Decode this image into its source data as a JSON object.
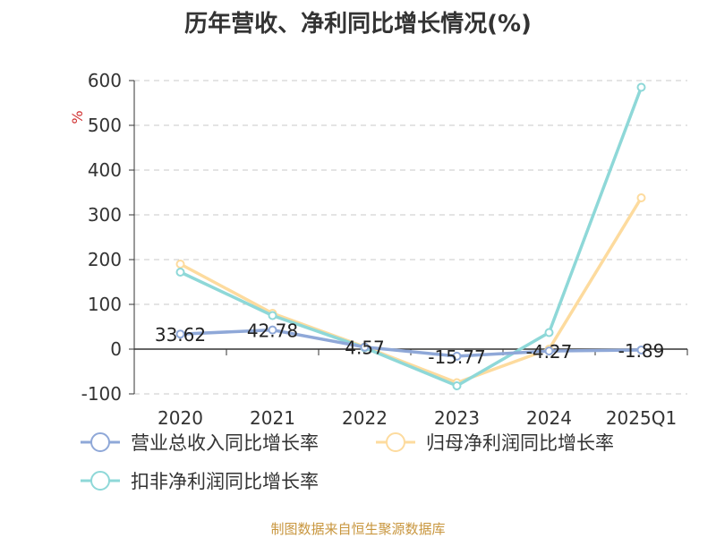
{
  "chart_data": {
    "type": "line",
    "title": "历年营收、净利同比增长情况(%)",
    "ylabel": "%",
    "categories": [
      "2020",
      "2021",
      "2022",
      "2023",
      "2024",
      "2025Q1"
    ],
    "yticks": [
      "600",
      "500",
      "400",
      "300",
      "200",
      "100",
      "0",
      "-100"
    ],
    "ylim": [
      -100,
      600
    ],
    "grid": true,
    "legend_position": "bottom-left",
    "series": [
      {
        "name": "营业总收入同比增长率",
        "color": "#8fa8d8",
        "values": [
          33.62,
          42.78,
          4.57,
          -15.77,
          -4.27,
          -1.89
        ],
        "labels": [
          "33.62",
          "42.78",
          "4.57",
          "-15.77",
          "-4.27",
          "-1.89"
        ]
      },
      {
        "name": "归母净利润同比增长率",
        "color": "#fddb9e",
        "values": [
          190,
          80,
          5,
          -75,
          0,
          338
        ]
      },
      {
        "name": "扣非净利润同比增长率",
        "color": "#8ed8d8",
        "values": [
          172,
          75,
          3,
          -82,
          37,
          585
        ]
      }
    ]
  },
  "source": "制图数据来自恒生聚源数据库"
}
